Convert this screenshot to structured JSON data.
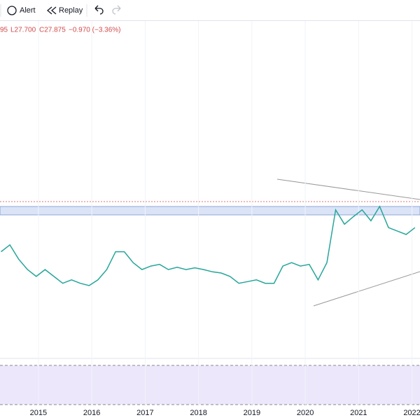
{
  "toolbar": {
    "alert": "Alert",
    "replay": "Replay"
  },
  "legend": {
    "partial": "95",
    "low": "L27.700",
    "close": "C27.875",
    "change": "−0.970 (−3.36%)"
  },
  "chart_data": {
    "type": "line",
    "color": "#26a69a",
    "x": [
      2014.3,
      2014.465,
      2014.63,
      2014.795,
      2014.96,
      2015.125,
      2015.29,
      2015.455,
      2015.62,
      2015.785,
      2015.95,
      2016.115,
      2016.28,
      2016.445,
      2016.61,
      2016.775,
      2016.94,
      2017.105,
      2017.27,
      2017.435,
      2017.6,
      2017.765,
      2017.93,
      2018.095,
      2018.26,
      2018.425,
      2018.59,
      2018.755,
      2018.92,
      2019.085,
      2019.25,
      2019.415,
      2019.58,
      2019.745,
      2019.91,
      2020.075,
      2020.24,
      2020.405,
      2020.57,
      2020.735,
      2020.9,
      2021.065,
      2021.23,
      2021.395,
      2021.56,
      2021.725,
      2021.89,
      2022.055
    ],
    "values": [
      24.8,
      26.0,
      23.5,
      21.7,
      20.5,
      21.7,
      20.5,
      19.3,
      19.9,
      19.3,
      18.9,
      19.9,
      21.7,
      24.8,
      24.8,
      22.9,
      21.7,
      22.3,
      22.6,
      21.7,
      22.1,
      21.7,
      22.0,
      21.7,
      21.3,
      21.1,
      20.5,
      19.3,
      19.6,
      19.9,
      19.3,
      19.3,
      22.3,
      22.9,
      22.3,
      22.6,
      19.9,
      22.9,
      32.1,
      29.6,
      30.9,
      32.1,
      30.2,
      32.7,
      29.0,
      28.4,
      27.8,
      29.0
    ],
    "xlim": [
      2014.28,
      2022.15
    ],
    "ylim": [
      15,
      65
    ],
    "xticks": [
      2015,
      2016,
      2017,
      2018,
      2019,
      2020,
      2021,
      2022
    ],
    "grid": true
  }
}
